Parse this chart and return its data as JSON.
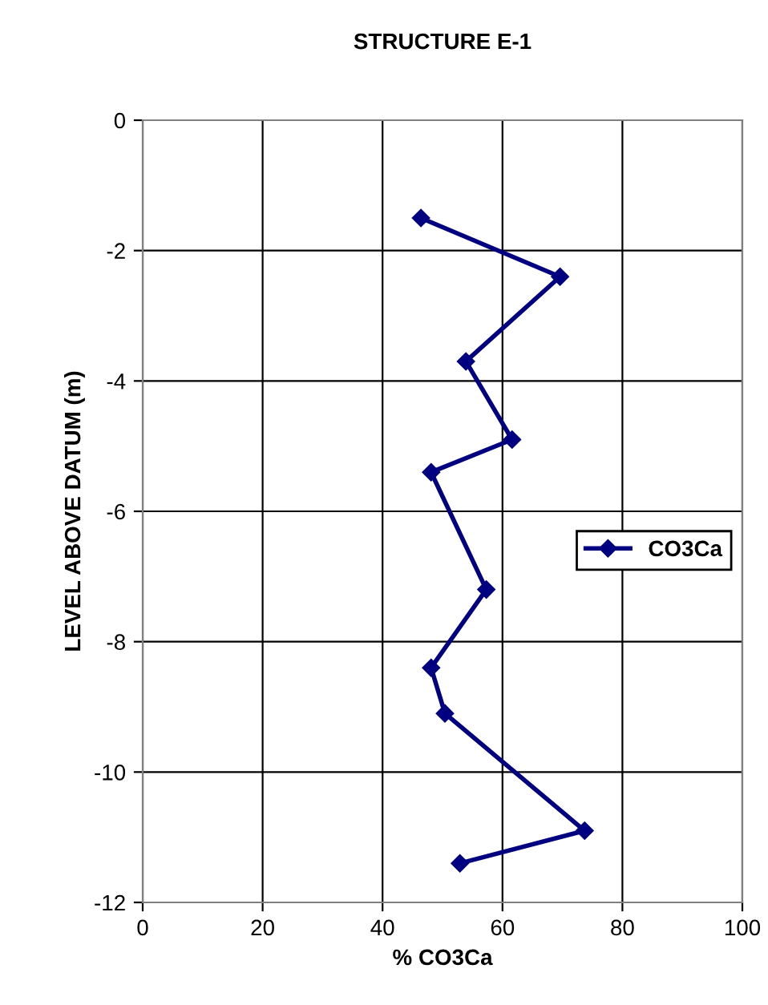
{
  "chart_data": {
    "type": "line",
    "title": "STRUCTURE E-1",
    "xlabel": "% CO3Ca",
    "ylabel": "LEVEL ABOVE DATUM (m)",
    "series": [
      {
        "name": "CO3Ca",
        "color": "#000080",
        "x": [
          46.4,
          69.6,
          53.9,
          61.6,
          48.1,
          57.3,
          48.1,
          50.4,
          73.7,
          52.9
        ],
        "values": [
          -1.5,
          -2.4,
          -3.7,
          -4.9,
          -5.4,
          -7.2,
          -8.4,
          -9.1,
          -10.9,
          -11.4
        ]
      }
    ],
    "xlim": [
      0,
      100
    ],
    "xticks": [
      0,
      20,
      40,
      60,
      80,
      100
    ],
    "ylim": [
      -12,
      0
    ],
    "yticks": [
      -12,
      -10,
      -8,
      -6,
      -4,
      -2,
      0
    ],
    "grid": true,
    "legend": "right",
    "marker": "diamond",
    "line_style": "solid"
  }
}
